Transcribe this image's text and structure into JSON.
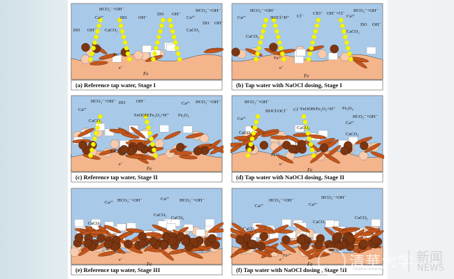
{
  "panels": [
    {
      "id": "a",
      "stage": 1,
      "caption": "(a) Reference tap water, Stage I",
      "labels": [
        "HCO₃⁻+OH⁻",
        "Ca²⁺",
        "DO",
        "OH⁻",
        "CaCO₃",
        "DO",
        "OH⁻",
        "DO",
        "OH⁻",
        "HCO₃⁻+OH⁻",
        "Ca²⁺",
        "CaCO₃",
        "DO",
        "OH⁻",
        "Fe²⁺",
        "Fe"
      ]
    },
    {
      "id": "b",
      "stage": 1,
      "caption": "(b) Tap water with NaOCl dosing, Stage I",
      "labels": [
        "Ca²⁺",
        "HCO₃⁻+OH⁻",
        "HOCl+H⁺",
        "Cl⁻",
        "CaCO₃",
        "ClO⁻",
        "OH⁻+Cl⁻",
        "HCO₃⁻+OH⁻",
        "Ca²⁺",
        "CaCO₃",
        "DO",
        "OH⁻",
        "Fe²⁺",
        "Fe"
      ]
    },
    {
      "id": "c",
      "stage": 2,
      "caption": "(c) Reference tap water, Stage II",
      "labels": [
        "Ca²⁺",
        "HCO₃⁻+OH⁻",
        "CaCO₃",
        "DO",
        "OH⁻",
        "FeOOH/Fe₂O₃+H⁺",
        "Fe₃O₄",
        "Ca²⁺",
        "HCO₃⁻+OH⁻",
        "Fe²⁺",
        "Fe"
      ]
    },
    {
      "id": "d",
      "stage": 2,
      "caption": "(d) Tap water with NaOCl dosing, Stage II",
      "labels": [
        "HCO₃⁻+OH⁻",
        "HOCl/OCl⁻",
        "Cl⁻",
        "FeOOH/Fe₂O₃+H⁺",
        "Fe₃O₄",
        "Ca²⁺",
        "CaCO₃",
        "CaCO₃",
        "HCO₃⁻+OH⁻",
        "Ca²⁺",
        "CaCO₃",
        "Fe²⁺",
        "Fe"
      ]
    },
    {
      "id": "e",
      "stage": 3,
      "caption": "(e) Reference tap water, Stage III",
      "labels": [
        "Ca²⁺",
        "HCO₃⁻+OH⁻",
        "CaCO₃",
        "Ca²⁺",
        "HCO₃⁻+OH⁻",
        "CaCO₃",
        "CaCO₃",
        "Fe"
      ]
    },
    {
      "id": "f",
      "stage": 3,
      "caption": "(f) Tap water with NaOCl dosing , Stage III",
      "labels": [
        "Ca²⁺",
        "HCO₃⁻+OH⁻",
        "Ca²⁺",
        "HCO₃⁻+OH⁻",
        "CaCO₃",
        "CaCO₃",
        "CaCO₃",
        "Fe²⁺",
        "Fe"
      ]
    }
  ],
  "electron_label": "e⁻",
  "colors": {
    "water": "#a9c9e8",
    "iron": "#f4b58c",
    "oxide_particle": "#7b3611",
    "oxide_rod": "#c4561b",
    "hexagon": "#f8cbad",
    "calcite": "#ffffff",
    "electron_path": "#f5f500"
  },
  "watermark": {
    "university": "清華大学",
    "sub": "Tsinghua University",
    "news_cn": "新闻",
    "news": "NEWS"
  }
}
